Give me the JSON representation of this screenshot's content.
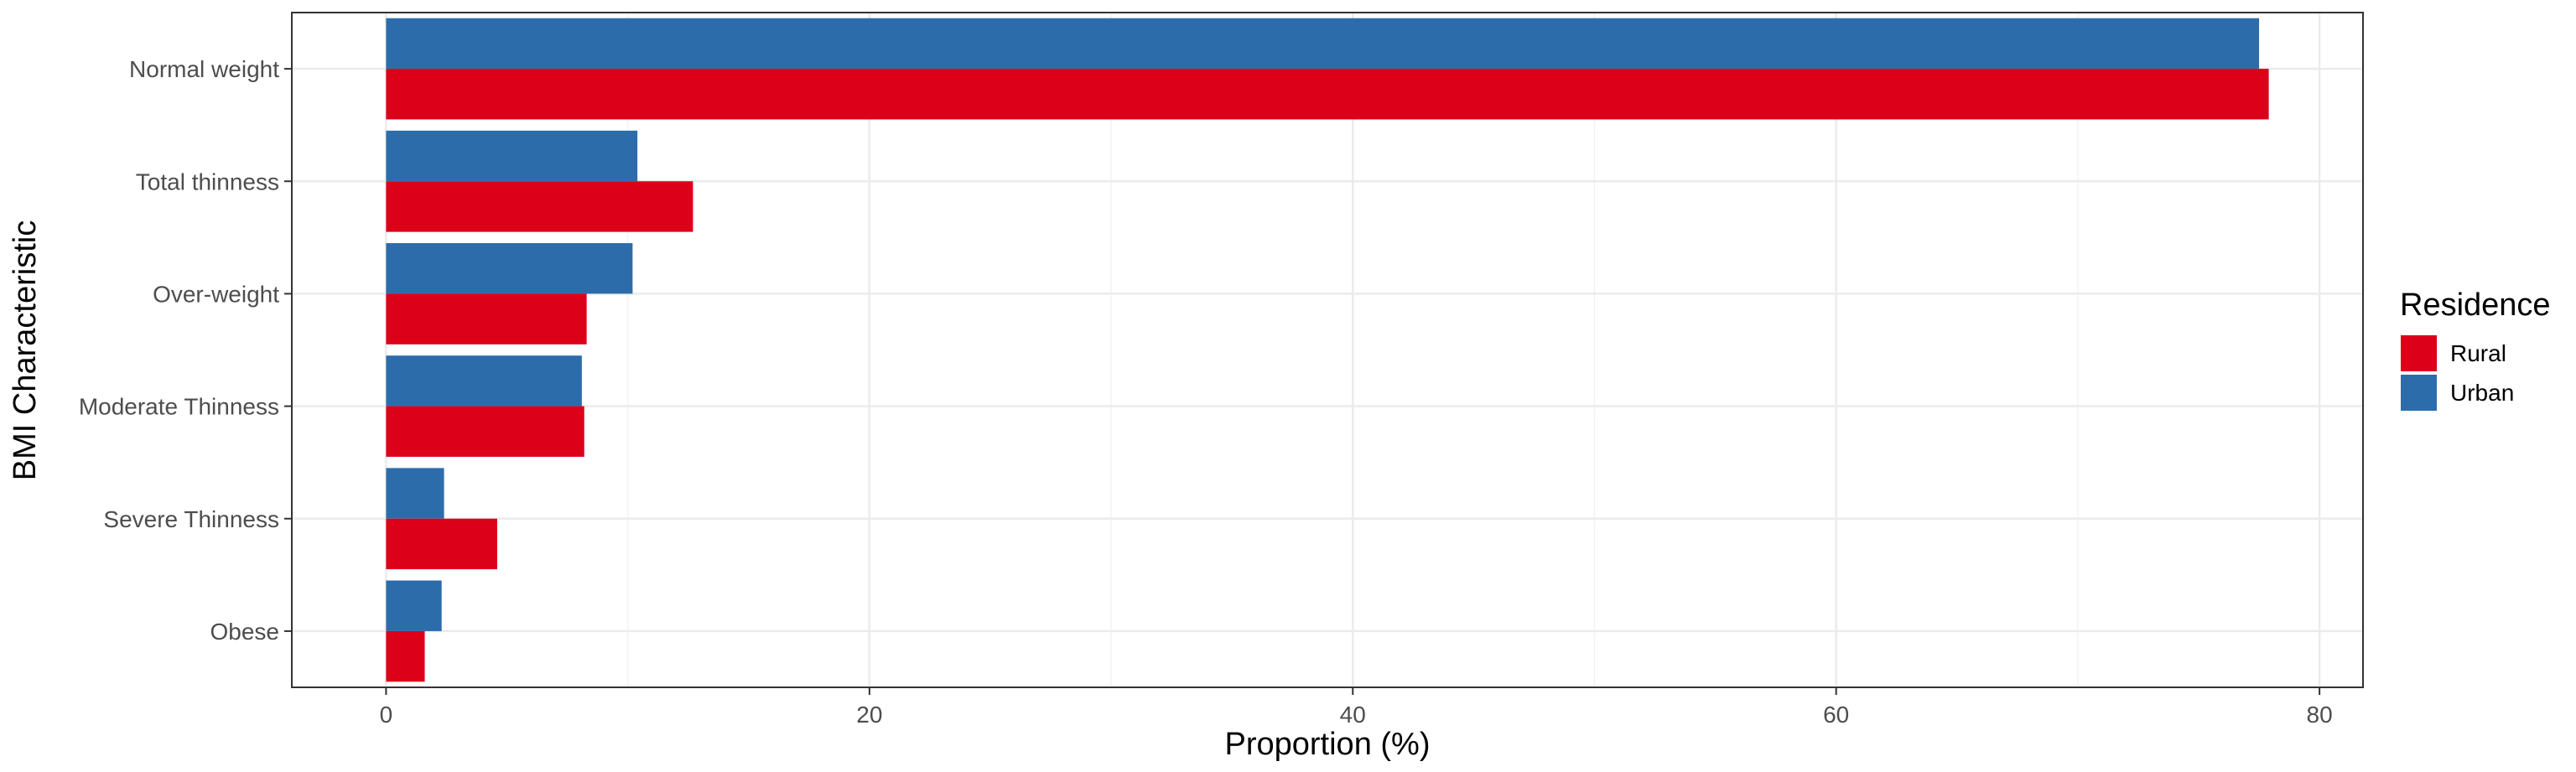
{
  "chart_data": {
    "type": "bar",
    "orientation": "horizontal",
    "title": "",
    "xlabel": "Proportion (%)",
    "ylabel": "BMI Characteristic",
    "xlim": [
      -3.9,
      81.8
    ],
    "x_ticks": [
      0,
      20,
      40,
      60,
      80
    ],
    "grid": true,
    "legend": {
      "title": "Residence",
      "placement": "right"
    },
    "categories": [
      "Normal weight",
      "Total thinness",
      "Over-weight",
      "Moderate Thinness",
      "Severe Thinness",
      "Obese"
    ],
    "series": [
      {
        "name": "Urban",
        "color": "#2d6cab",
        "values": [
          77.5,
          10.4,
          10.2,
          8.1,
          2.4,
          2.3
        ]
      },
      {
        "name": "Rural",
        "color": "#dc0019",
        "values": [
          77.9,
          12.7,
          8.3,
          8.2,
          4.6,
          1.6
        ]
      }
    ],
    "legend_order": [
      "Rural",
      "Urban"
    ]
  }
}
